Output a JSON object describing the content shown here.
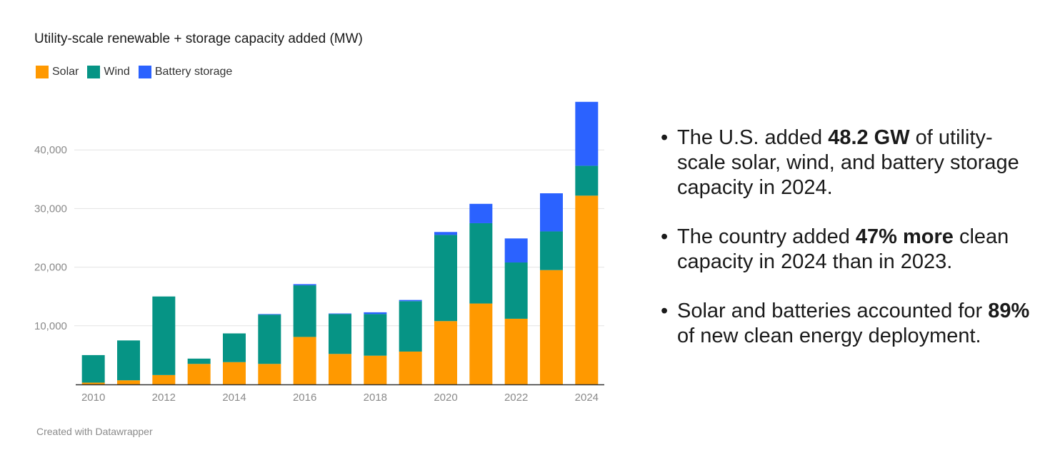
{
  "chart_data": {
    "type": "bar",
    "stacked": true,
    "title": "Utility-scale renewable + storage capacity added (MW)",
    "xlabel": "",
    "ylabel": "",
    "categories": [
      "2010",
      "2011",
      "2012",
      "2013",
      "2014",
      "2015",
      "2016",
      "2017",
      "2018",
      "2019",
      "2020",
      "2021",
      "2022",
      "2023",
      "2024"
    ],
    "x_tick_labels": [
      "2010",
      "2012",
      "2014",
      "2016",
      "2018",
      "2020",
      "2022",
      "2024"
    ],
    "y_tick_labels": [
      "10,000",
      "20,000",
      "30,000",
      "40,000"
    ],
    "y_ticks": [
      10000,
      20000,
      30000,
      40000
    ],
    "ylim": [
      0,
      50000
    ],
    "grid": true,
    "legend_position": "top-left",
    "series": [
      {
        "name": "Solar",
        "color": "#ff9900",
        "values": [
          300,
          700,
          1600,
          3500,
          3800,
          3500,
          8100,
          5200,
          4900,
          5600,
          10800,
          13800,
          11200,
          19500,
          32200
        ]
      },
      {
        "name": "Wind",
        "color": "#069485",
        "values": [
          4700,
          6800,
          13400,
          900,
          4900,
          8400,
          8800,
          6800,
          7100,
          8600,
          14700,
          13700,
          9600,
          6600,
          5100
        ]
      },
      {
        "name": "Battery storage",
        "color": "#2b62ff",
        "values": [
          0,
          0,
          0,
          0,
          0,
          100,
          200,
          100,
          300,
          200,
          500,
          3300,
          4100,
          6500,
          10900
        ]
      }
    ]
  },
  "credit": "Created with Datawrapper",
  "bullets": [
    {
      "before": "The U.S. added ",
      "bold": "48.2 GW",
      "after": " of utility-scale solar, wind, and battery storage capacity in 2024."
    },
    {
      "before": "The country added ",
      "bold": "47% more",
      "after": " clean capacity in 2024 than in 2023."
    },
    {
      "before": "Solar and batteries accounted for ",
      "bold": "89%",
      "after": " of new clean energy deployment."
    }
  ],
  "bullet_symbol": "•"
}
